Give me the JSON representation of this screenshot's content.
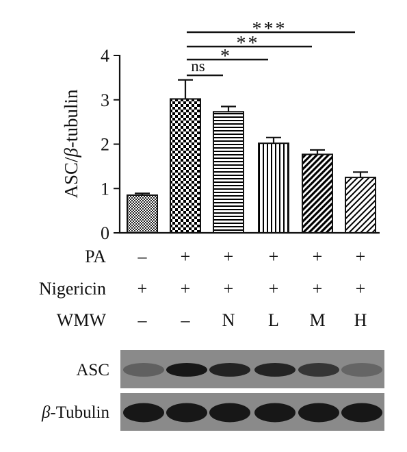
{
  "chart_data": {
    "type": "bar",
    "ylabel_prefix": "ASC/",
    "ylabel_beta": "β",
    "ylabel_suffix": "-tubulin",
    "ylim": [
      0,
      4
    ],
    "yticks": [
      "0",
      "1",
      "2",
      "3",
      "4"
    ],
    "grid": false,
    "values": [
      0.85,
      3.02,
      2.73,
      2.02,
      1.77,
      1.25
    ],
    "errors": [
      0.04,
      0.43,
      0.12,
      0.13,
      0.1,
      0.12
    ],
    "patterns": [
      "fine-dots",
      "checker",
      "horizontal",
      "vertical",
      "diag-thick",
      "diag-thin"
    ],
    "significance": [
      {
        "label": "ns",
        "from": 1,
        "to": 2
      },
      {
        "label": "*",
        "from": 1,
        "to": 3
      },
      {
        "label": "**",
        "from": 1,
        "to": 4
      },
      {
        "label": "***",
        "from": 1,
        "to": 5
      }
    ],
    "conditions": [
      {
        "name": "PA",
        "values": [
          "–",
          "+",
          "+",
          "+",
          "+",
          "+"
        ]
      },
      {
        "name": "Nigericin",
        "values": [
          "+",
          "+",
          "+",
          "+",
          "+",
          "+"
        ]
      },
      {
        "name": "WMW",
        "values": [
          "–",
          "–",
          "N",
          "L",
          "M",
          "H"
        ]
      }
    ]
  },
  "blots": {
    "asc_label": "ASC",
    "tubulin_beta": "β",
    "tubulin_suffix": "-Tubulin",
    "background_color": "#8a8a8a",
    "band_color": "#111111",
    "asc_band_intensity": [
      0.35,
      0.95,
      0.85,
      0.85,
      0.7,
      0.3
    ],
    "tubulin_band_intensity": [
      0.95,
      0.95,
      0.95,
      0.95,
      0.95,
      0.95
    ]
  }
}
